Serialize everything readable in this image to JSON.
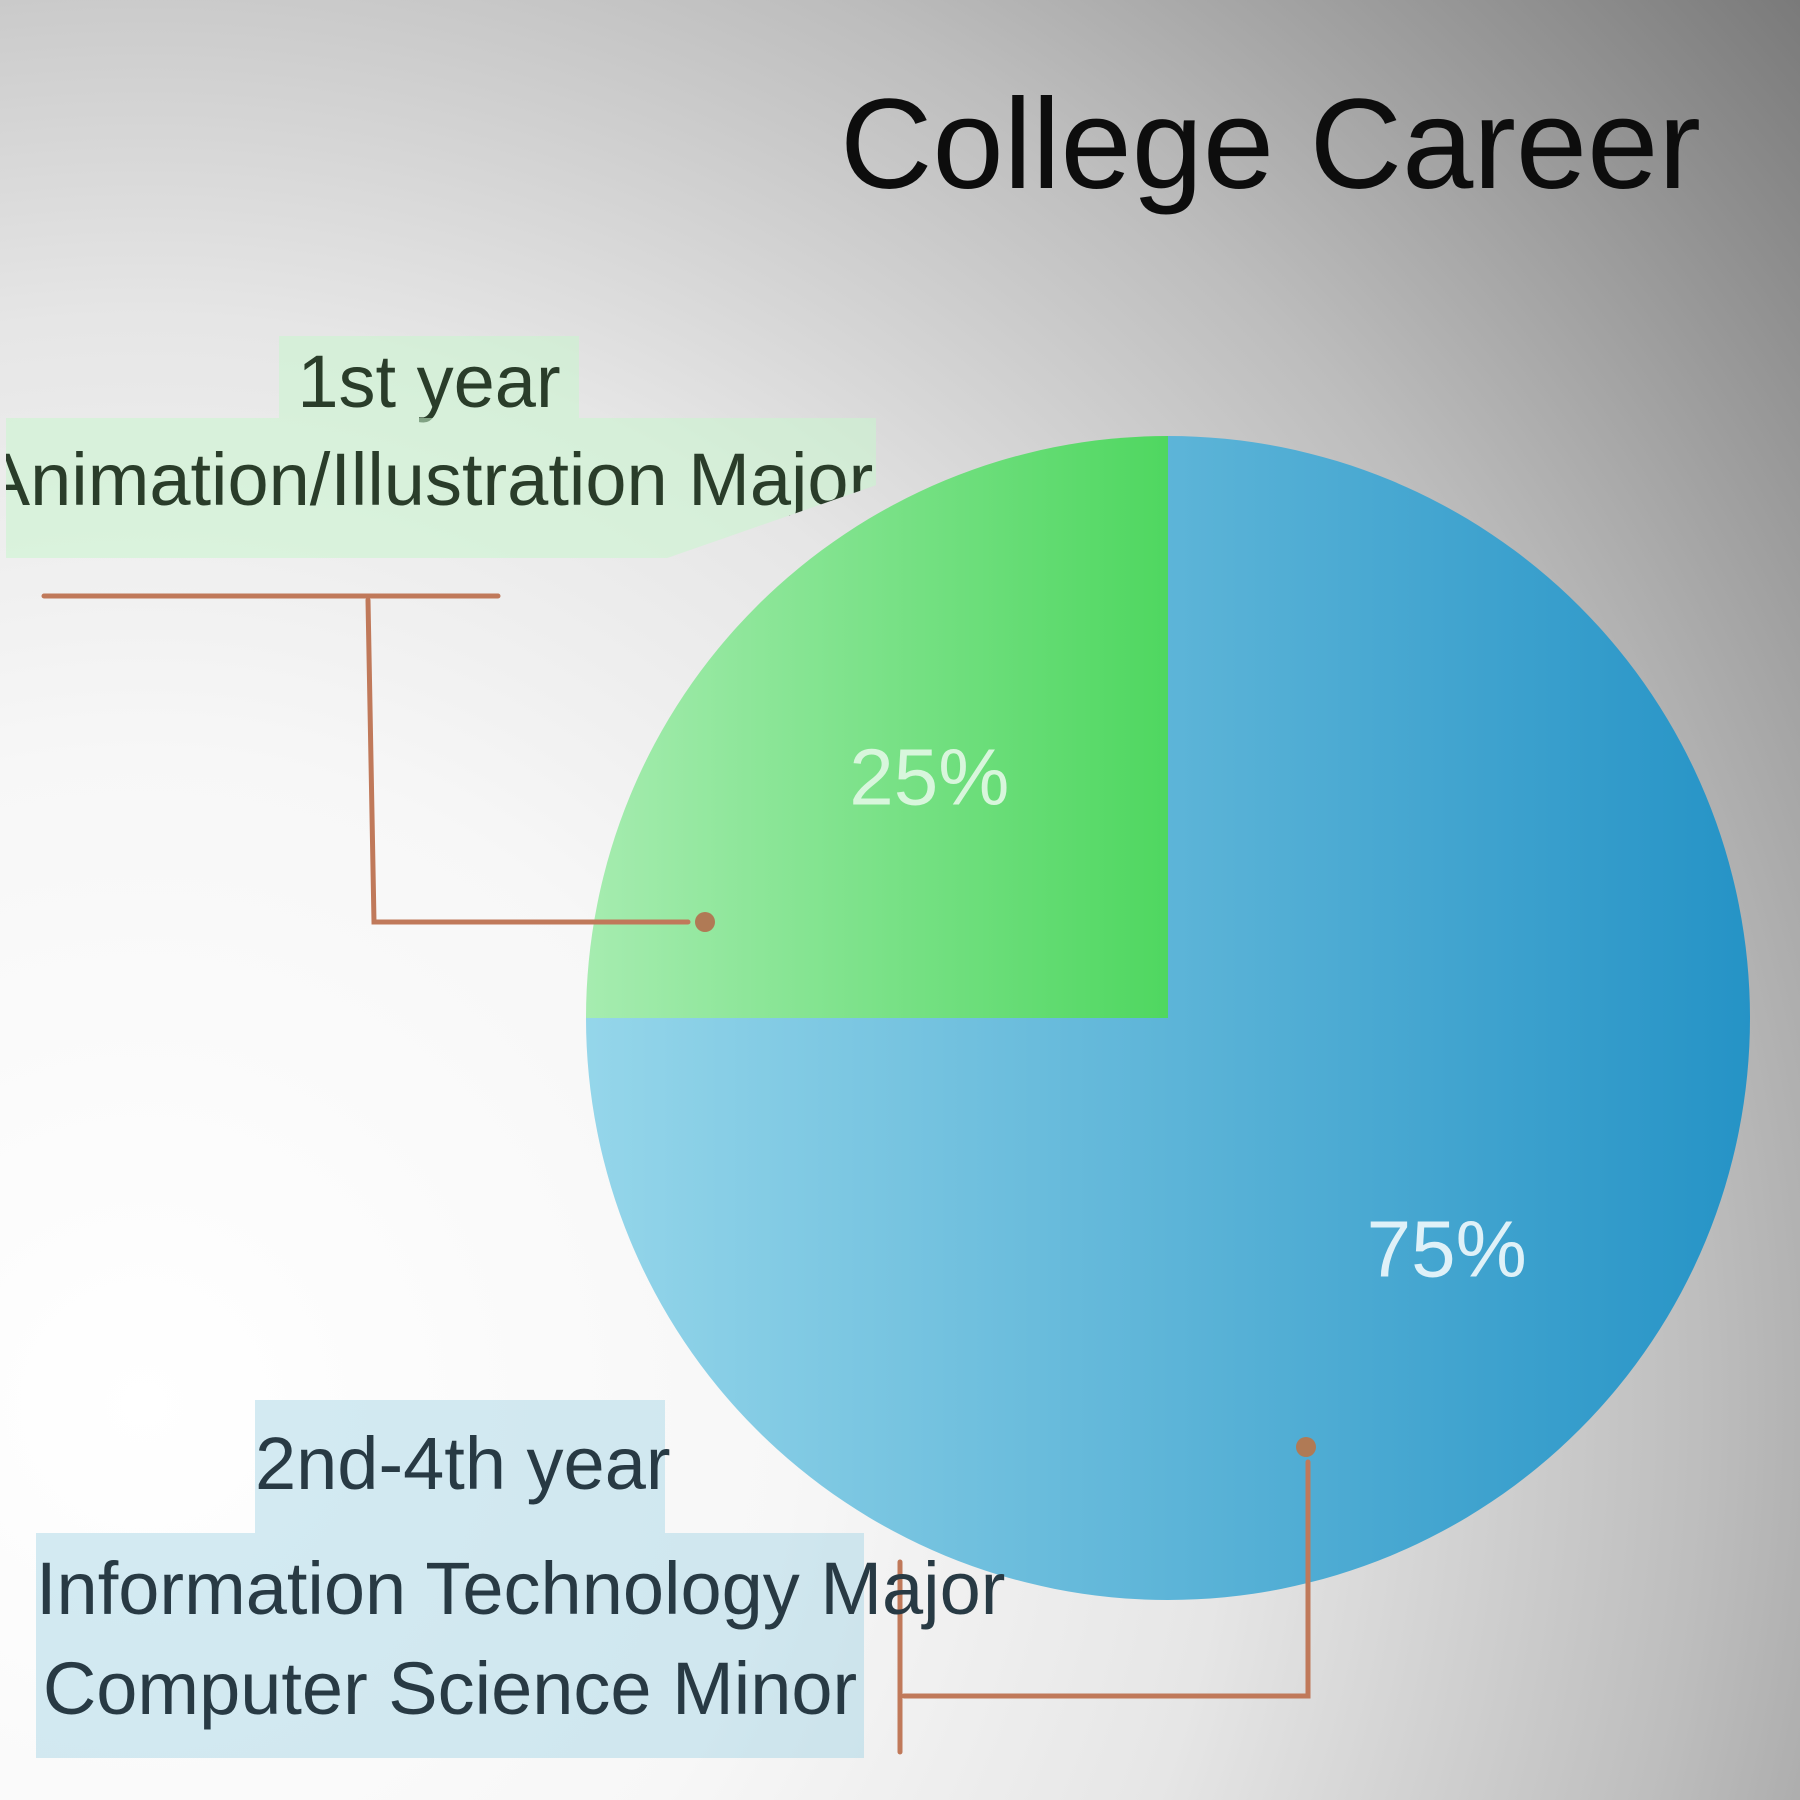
{
  "chart_data": {
    "type": "pie",
    "title": "College Career",
    "slices": [
      {
        "label": "1st year",
        "detail": [
          "Animation/Illustration Major"
        ],
        "value": 25,
        "value_label": "25%",
        "color": "#5cd874"
      },
      {
        "label": "2nd-4th year",
        "detail": [
          "Information Technology Major",
          "Computer Science Minor"
        ],
        "value": 75,
        "value_label": "75%",
        "color": "#39a7d2"
      }
    ],
    "legend": "none"
  },
  "colors": {
    "green_light": "#a6ecb0",
    "green_dark": "#4fd760",
    "blue_light": "#95d6ea",
    "blue_dark": "#2593c6",
    "leader": "#c0795a",
    "leader_dot": "#b07a55"
  }
}
